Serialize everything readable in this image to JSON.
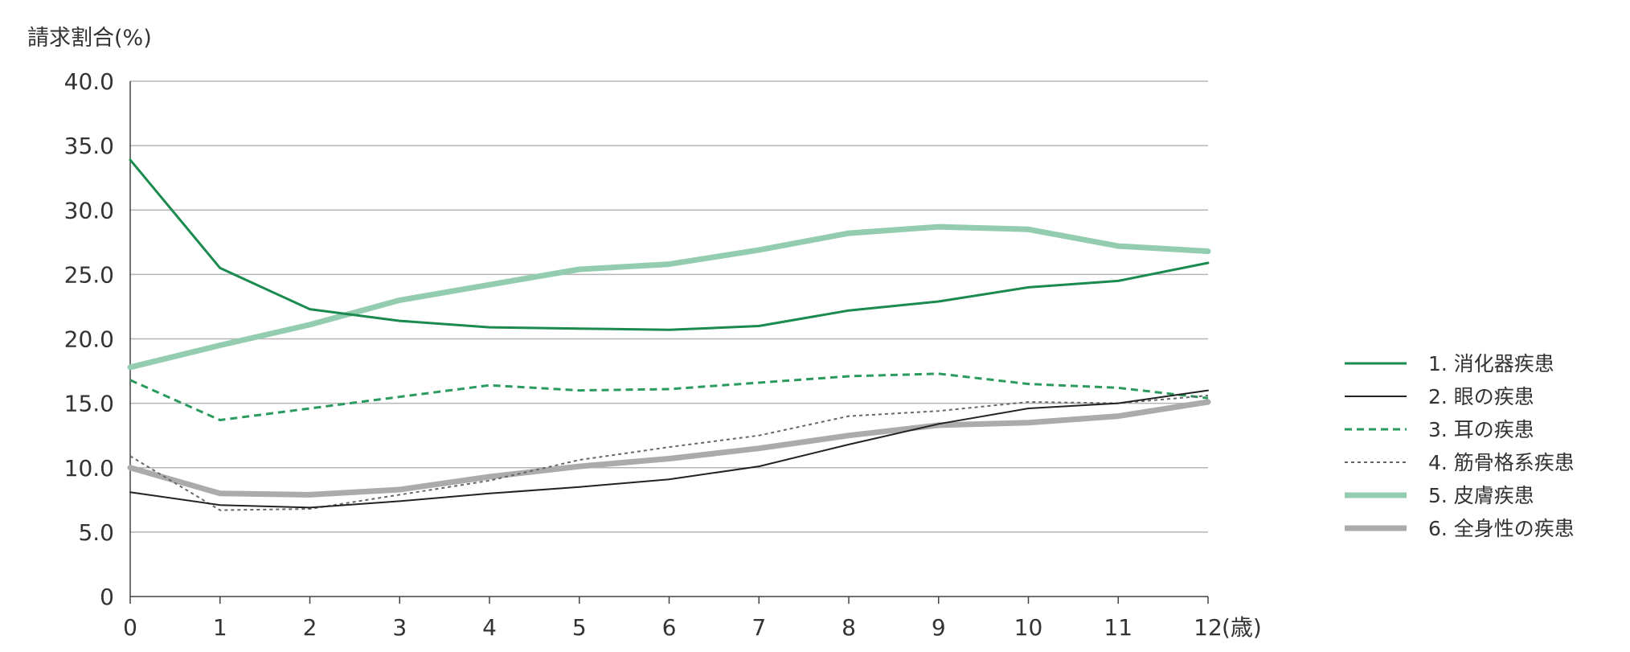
{
  "chart_data": {
    "type": "line",
    "ylabel": "請求割合(%)",
    "xlabel": "(歳)",
    "ylim": [
      0,
      40
    ],
    "yticks": [
      "0",
      "5.0",
      "10.0",
      "15.0",
      "20.0",
      "25.0",
      "30.0",
      "35.0",
      "40.0"
    ],
    "categories": [
      "0",
      "1",
      "2",
      "3",
      "4",
      "5",
      "6",
      "7",
      "8",
      "9",
      "10",
      "11",
      "12"
    ],
    "grid": true,
    "legend_position": "right",
    "series": [
      {
        "name": "1. 消化器疾患",
        "color": "#1a8a4f",
        "style": "solid",
        "width": "thin",
        "values": [
          33.9,
          25.5,
          22.3,
          21.4,
          20.9,
          20.8,
          20.7,
          21.0,
          22.2,
          22.9,
          24.0,
          24.5,
          25.9
        ]
      },
      {
        "name": "2. 眼の疾患",
        "color": "#222222",
        "style": "solid",
        "width": "hair",
        "values": [
          8.1,
          7.1,
          6.9,
          7.4,
          8.0,
          8.5,
          9.1,
          10.1,
          11.8,
          13.4,
          14.6,
          15.0,
          16.0
        ]
      },
      {
        "name": "3. 耳の疾患",
        "color": "#2a9a5e",
        "style": "dashed",
        "width": "thin",
        "values": [
          16.8,
          13.7,
          14.6,
          15.5,
          16.4,
          16.0,
          16.1,
          16.6,
          17.1,
          17.3,
          16.5,
          16.2,
          15.4
        ]
      },
      {
        "name": "4. 筋骨格系疾患",
        "color": "#666666",
        "style": "dotted",
        "width": "hair",
        "values": [
          10.9,
          6.7,
          6.8,
          7.9,
          9.0,
          10.6,
          11.6,
          12.5,
          14.0,
          14.4,
          15.1,
          15.0,
          15.6
        ]
      },
      {
        "name": "5. 皮膚疾患",
        "color": "#93ccaf",
        "style": "solid",
        "width": "thick",
        "values": [
          17.8,
          19.5,
          21.1,
          23.0,
          24.2,
          25.4,
          25.8,
          26.9,
          28.2,
          28.7,
          28.5,
          27.2,
          26.8
        ]
      },
      {
        "name": "6. 全身性の疾患",
        "color": "#ababab",
        "style": "solid",
        "width": "thick",
        "values": [
          10.0,
          8.0,
          7.9,
          8.3,
          9.3,
          10.1,
          10.7,
          11.5,
          12.5,
          13.3,
          13.5,
          14.0,
          15.1
        ]
      }
    ]
  }
}
